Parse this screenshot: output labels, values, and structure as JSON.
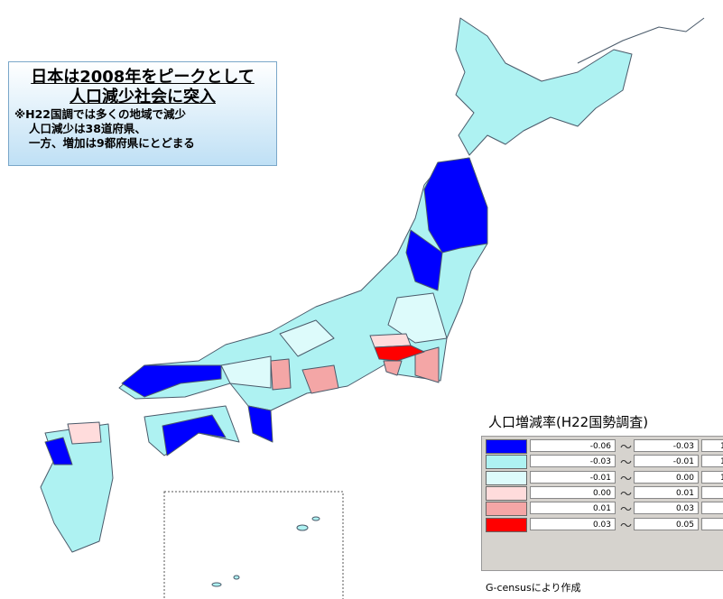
{
  "note": {
    "headline": [
      "日本は2008年をピークとして",
      "人口減少社会に突入"
    ],
    "lines": [
      "※H22国調では多くの地域で減少",
      "人口減少は38道府県、",
      "一方、増加は9都府県にとどまる"
    ]
  },
  "legend": {
    "title": "人口増減率(H22国勢調査)",
    "separator": "〜",
    "rows": [
      {
        "color": "#0000ff",
        "from": "-0.06",
        "to": "-0.03",
        "extra": "1"
      },
      {
        "color": "#aef2f2",
        "from": "-0.03",
        "to": "-0.01",
        "extra": "1"
      },
      {
        "color": "#ddfbfb",
        "from": "-0.01",
        "to": "0.00",
        "extra": "1"
      },
      {
        "color": "#ffdcdc",
        "from": "0.00",
        "to": "0.01"
      },
      {
        "color": "#f4a6a6",
        "from": "0.01",
        "to": "0.03"
      },
      {
        "color": "#ff0000",
        "from": "0.03",
        "to": "0.05"
      }
    ]
  },
  "source": "G-censusにより作成"
}
